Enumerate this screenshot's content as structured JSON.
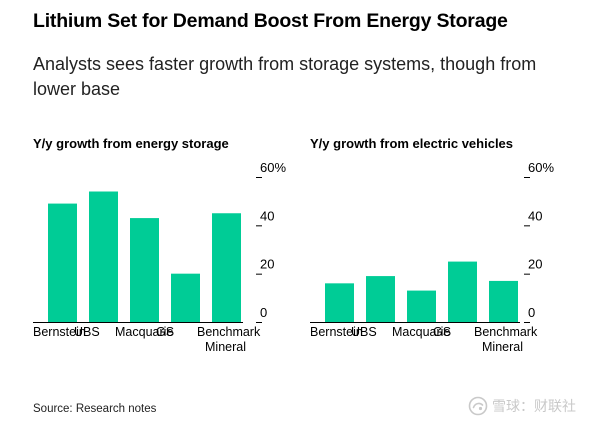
{
  "header": {
    "title": "Lithium Set for Demand Boost From Energy Storage",
    "subtitle": "Analysts sees faster growth from storage systems, though from lower base"
  },
  "footer": {
    "source": "Source: Research notes",
    "watermark": "雪球：财联社"
  },
  "colors": {
    "bar": "#00cc96",
    "text": "#000000",
    "axis": "#000000"
  },
  "chart_data": [
    {
      "type": "bar",
      "title": "Y/y growth from energy storage",
      "categories": [
        "Bernstein",
        "UBS",
        "Macquarie",
        "GS",
        "Benchmark Mineral"
      ],
      "category_labels": [
        [
          "Bernstein"
        ],
        [
          "UBS"
        ],
        [
          "Macquarie"
        ],
        [
          "GS"
        ],
        [
          "Benchmark",
          "Mineral"
        ]
      ],
      "values": [
        49,
        54,
        43,
        20,
        45
      ],
      "ylim": [
        0,
        60
      ],
      "yticks": [
        0,
        20,
        40,
        60
      ],
      "ytick_labels": [
        "0",
        "20",
        "40",
        "60%"
      ],
      "xlabel": "",
      "ylabel": "",
      "grid": false,
      "axis_position": "right"
    },
    {
      "type": "bar",
      "title": "Y/y growth from electric vehicles",
      "categories": [
        "Bernstein",
        "UBS",
        "Macquarie",
        "GS",
        "Benchmark Mineral"
      ],
      "category_labels": [
        [
          "Bernstein"
        ],
        [
          "UBS"
        ],
        [
          "Macquarie"
        ],
        [
          "GS"
        ],
        [
          "Benchmark",
          "Mineral"
        ]
      ],
      "values": [
        16,
        19,
        13,
        25,
        17
      ],
      "ylim": [
        0,
        60
      ],
      "yticks": [
        0,
        20,
        40,
        60
      ],
      "ytick_labels": [
        "0",
        "20",
        "40",
        "60%"
      ],
      "xlabel": "",
      "ylabel": "",
      "grid": false,
      "axis_position": "right"
    }
  ]
}
